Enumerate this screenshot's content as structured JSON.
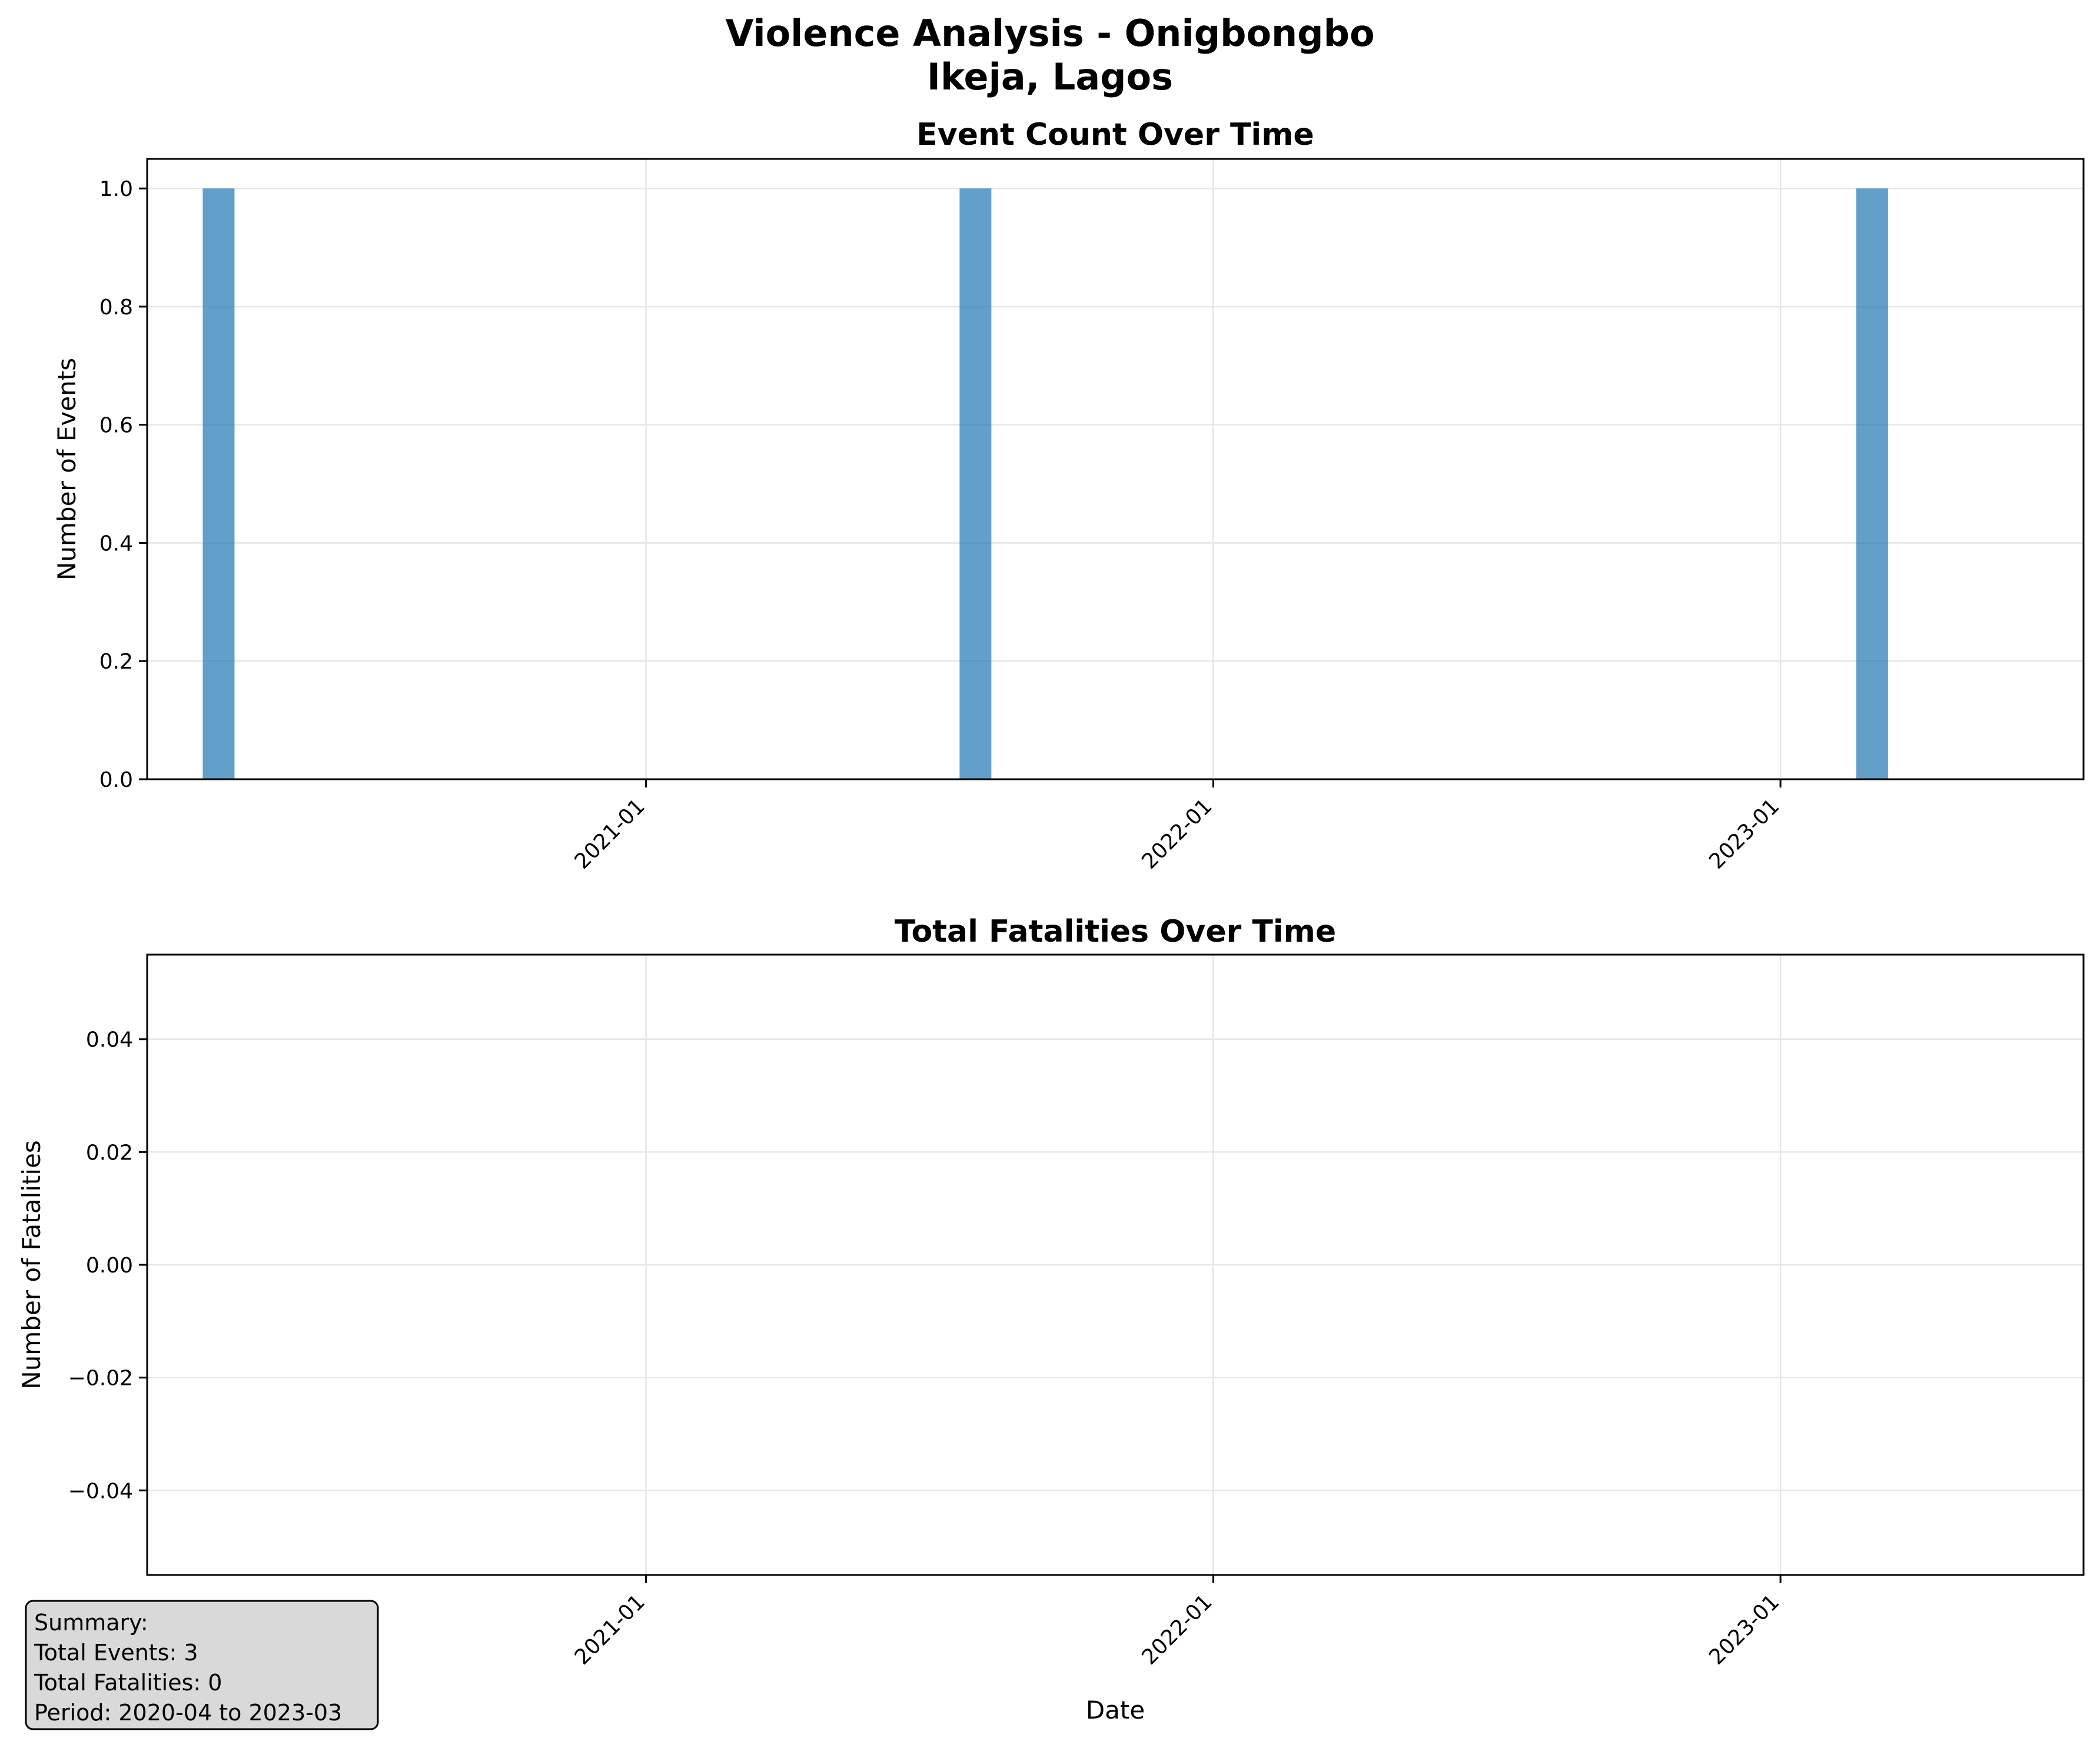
{
  "figure": {
    "suptitle_line1": "Violence Analysis - Onigbongbo",
    "suptitle_line2": "Ikeja, Lagos",
    "summary": {
      "header": "Summary:",
      "total_events": "Total Events: 3",
      "total_fatalities": "Total Fatalities: 0",
      "period": "Period: 2020-04 to 2023-03"
    }
  },
  "colors": {
    "bar": "#1f77b4",
    "grid": "#e6e6e6",
    "summary_box": "#d9d9d9"
  },
  "chart_data": [
    {
      "type": "bar",
      "title": "Event Count Over Time",
      "xlabel": "",
      "ylabel": "Number of Events",
      "x": [
        "2020-04",
        "2021-08",
        "2023-03"
      ],
      "values": [
        1,
        1,
        1
      ],
      "x_range": [
        "2020-02-15",
        "2023-07-15"
      ],
      "x_ticks": [
        "2021-01",
        "2022-01",
        "2023-01"
      ],
      "ylim": [
        0,
        1.05
      ],
      "y_ticks": [
        0.0,
        0.2,
        0.4,
        0.6,
        0.8,
        1.0
      ],
      "y_tick_labels": [
        "0.0",
        "0.2",
        "0.4",
        "0.6",
        "0.8",
        "1.0"
      ],
      "grid": true
    },
    {
      "type": "bar",
      "title": "Total Fatalities Over Time",
      "xlabel": "Date",
      "ylabel": "Number of Fatalities",
      "x": [
        "2020-04",
        "2021-08",
        "2023-03"
      ],
      "values": [
        0,
        0,
        0
      ],
      "x_range": [
        "2020-02-15",
        "2023-07-15"
      ],
      "x_ticks": [
        "2021-01",
        "2022-01",
        "2023-01"
      ],
      "ylim": [
        -0.055,
        0.055
      ],
      "y_ticks": [
        -0.04,
        -0.02,
        0.0,
        0.02,
        0.04
      ],
      "y_tick_labels": [
        "−0.04",
        "−0.02",
        "0.00",
        "0.02",
        "0.04"
      ],
      "grid": true
    }
  ]
}
